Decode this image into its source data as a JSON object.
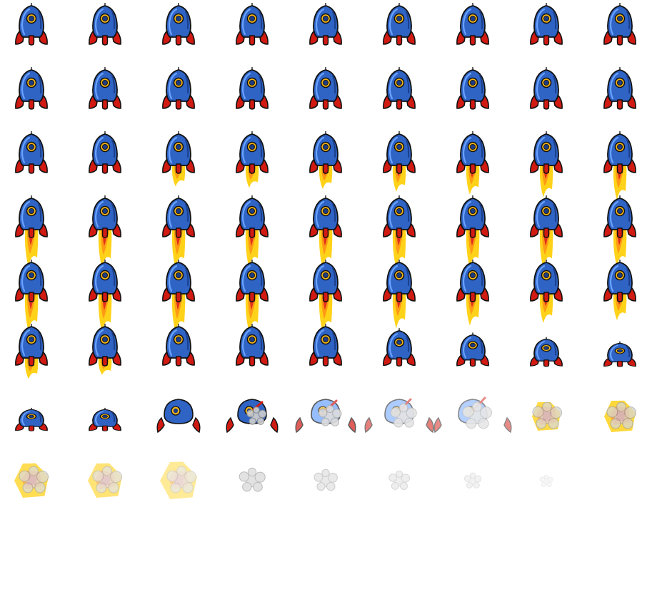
{
  "sheet": {
    "columns": 9,
    "rows": 8,
    "colors": {
      "body": "#2f63c4",
      "body_dark": "#1b3f8a",
      "body_highlight": "#6aa3ff",
      "fin": "#d11a12",
      "porthole_ring": "#f3b51a",
      "porthole_glass": "#1d3b80",
      "outline": "#111111",
      "flame_outer": "#ffd21a",
      "flame_mid": "#ff9a14",
      "flame_inner": "#e2301a",
      "smoke": "#cfcfcf",
      "smoke_dark": "#8f8f8f"
    },
    "frames": [
      {
        "kind": "rocket",
        "flame": 0
      },
      {
        "kind": "rocket",
        "flame": 0
      },
      {
        "kind": "rocket",
        "flame": 0
      },
      {
        "kind": "rocket",
        "flame": 0
      },
      {
        "kind": "rocket",
        "flame": 0
      },
      {
        "kind": "rocket",
        "flame": 0
      },
      {
        "kind": "rocket",
        "flame": 0
      },
      {
        "kind": "rocket",
        "flame": 0
      },
      {
        "kind": "rocket",
        "flame": 0
      },
      {
        "kind": "rocket",
        "flame": 0
      },
      {
        "kind": "rocket",
        "flame": 0
      },
      {
        "kind": "rocket",
        "flame": 0
      },
      {
        "kind": "rocket",
        "flame": 0
      },
      {
        "kind": "rocket",
        "flame": 0
      },
      {
        "kind": "rocket",
        "flame": 0
      },
      {
        "kind": "rocket",
        "flame": 0
      },
      {
        "kind": "rocket",
        "flame": 0
      },
      {
        "kind": "rocket",
        "flame": 0
      },
      {
        "kind": "rocket",
        "flame": 0
      },
      {
        "kind": "rocket",
        "flame": 0
      },
      {
        "kind": "rocket",
        "flame": 0.25
      },
      {
        "kind": "rocket",
        "flame": 0.3
      },
      {
        "kind": "rocket",
        "flame": 0.35
      },
      {
        "kind": "rocket",
        "flame": 0.45
      },
      {
        "kind": "rocket",
        "flame": 0.55
      },
      {
        "kind": "rocket",
        "flame": 0.65
      },
      {
        "kind": "rocket",
        "flame": 0.75
      },
      {
        "kind": "rocket",
        "flame": 0.85
      },
      {
        "kind": "rocket",
        "flame": 0.9
      },
      {
        "kind": "rocket",
        "flame": 0.9
      },
      {
        "kind": "rocket",
        "flame": 0.9
      },
      {
        "kind": "rocket",
        "flame": 0.9
      },
      {
        "kind": "rocket",
        "flame": 0.9
      },
      {
        "kind": "rocket",
        "flame": 0.9
      },
      {
        "kind": "rocket",
        "flame": 0.9
      },
      {
        "kind": "rocket",
        "flame": 0.85
      },
      {
        "kind": "rocket",
        "flame": 0.85
      },
      {
        "kind": "rocket",
        "flame": 0.9
      },
      {
        "kind": "rocket",
        "flame": 0.9
      },
      {
        "kind": "rocket",
        "flame": 0.9
      },
      {
        "kind": "rocket",
        "flame": 0.9
      },
      {
        "kind": "rocket",
        "flame": 0.75
      },
      {
        "kind": "rocket",
        "flame": 0.65
      },
      {
        "kind": "rocket",
        "flame": 0.55
      },
      {
        "kind": "rocket",
        "flame": 0.45
      },
      {
        "kind": "rocket",
        "flame": 0.25
      },
      {
        "kind": "rocket",
        "flame": 0.1
      },
      {
        "kind": "rocket",
        "flame": 0
      },
      {
        "kind": "rocket",
        "flame": 0
      },
      {
        "kind": "rocket",
        "flame": 0
      },
      {
        "kind": "rocket",
        "flame": 0,
        "squash": 0.9
      },
      {
        "kind": "rocket",
        "flame": 0,
        "squash": 0.8
      },
      {
        "kind": "rocket",
        "flame": 0,
        "squash": 0.7
      },
      {
        "kind": "rocket",
        "flame": 0,
        "squash": 0.6
      },
      {
        "kind": "rocket",
        "flame": 0,
        "squash": 0.55
      },
      {
        "kind": "rocket",
        "flame": 0,
        "squash": 0.55
      },
      {
        "kind": "breakup",
        "stage": 1,
        "opacity": 1
      },
      {
        "kind": "breakup",
        "stage": 2,
        "opacity": 1
      },
      {
        "kind": "breakup",
        "stage": 3,
        "opacity": 0.7
      },
      {
        "kind": "breakup",
        "stage": 4,
        "opacity": 0.55
      },
      {
        "kind": "breakup",
        "stage": 5,
        "opacity": 0.5
      },
      {
        "kind": "explosion",
        "stage": 1,
        "opacity": 0.8
      },
      {
        "kind": "explosion",
        "stage": 2,
        "opacity": 0.85
      },
      {
        "kind": "explosion",
        "stage": 3,
        "opacity": 0.75
      },
      {
        "kind": "explosion",
        "stage": 3,
        "opacity": 0.6
      },
      {
        "kind": "explosion",
        "stage": 4,
        "opacity": 0.45
      },
      {
        "kind": "smoke",
        "size": 1,
        "opacity": 0.6
      },
      {
        "kind": "smoke",
        "size": 0.9,
        "opacity": 0.45
      },
      {
        "kind": "smoke",
        "size": 0.8,
        "opacity": 0.35
      },
      {
        "kind": "smoke",
        "size": 0.65,
        "opacity": 0.25
      },
      {
        "kind": "smoke",
        "size": 0.5,
        "opacity": 0.15
      },
      {
        "kind": "empty"
      }
    ]
  }
}
